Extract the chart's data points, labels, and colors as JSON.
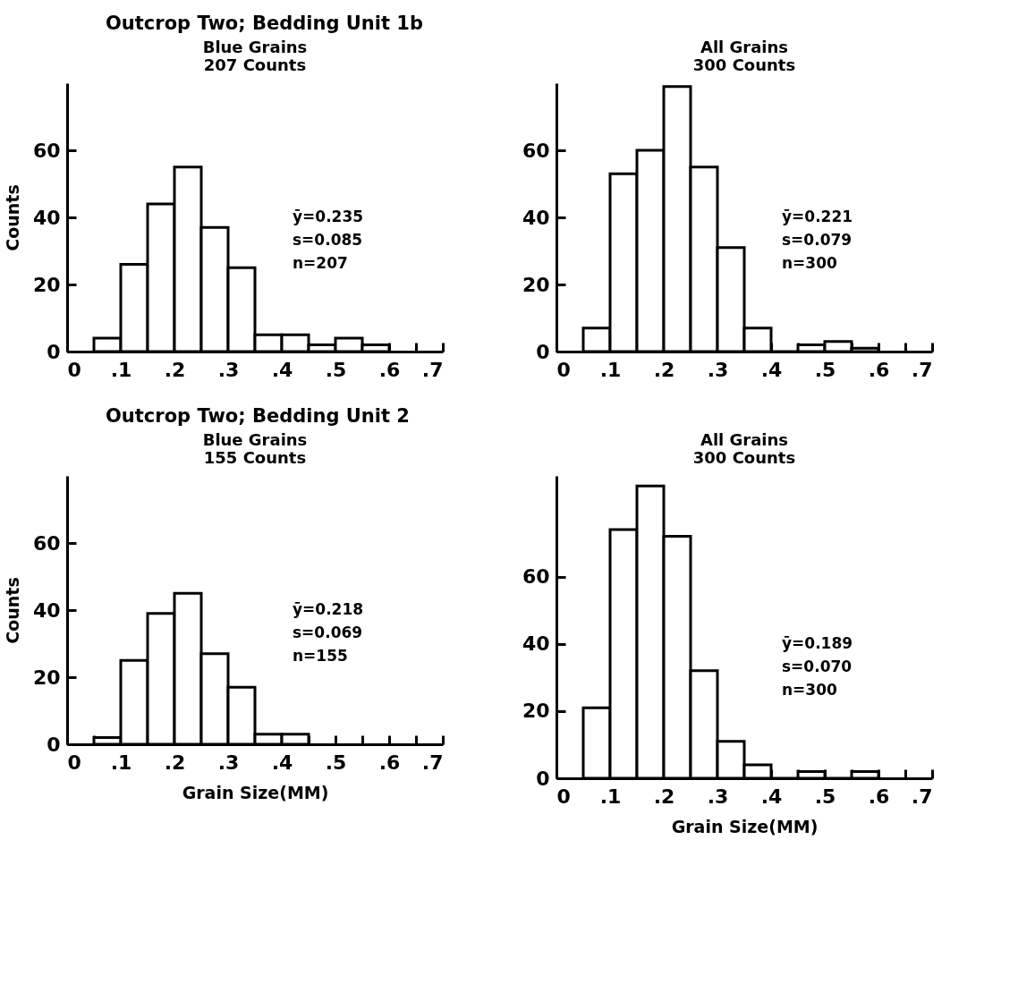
{
  "chart_data": [
    {
      "type": "histogram",
      "title": "Outcrop Two; Bedding Unit 1b",
      "subtitle": "Blue Grains\n207 Counts",
      "ylabel": "Counts",
      "bins": [
        0.05,
        0.1,
        0.15,
        0.2,
        0.25,
        0.3,
        0.35,
        0.4,
        0.45,
        0.5,
        0.55,
        0.6
      ],
      "values": [
        4,
        26,
        44,
        55,
        37,
        25,
        5,
        5,
        2,
        4,
        2
      ],
      "color": "#ffffff",
      "xlim": [
        0,
        0.7
      ],
      "xticks": [
        {
          "value": 0,
          "label": "0"
        },
        {
          "value": 0.05,
          "label": null
        },
        {
          "value": 0.1,
          "label": ".1"
        },
        {
          "value": 0.15,
          "label": null
        },
        {
          "value": 0.2,
          "label": ".2"
        },
        {
          "value": 0.25,
          "label": null
        },
        {
          "value": 0.3,
          "label": ".3"
        },
        {
          "value": 0.35,
          "label": null
        },
        {
          "value": 0.4,
          "label": ".4"
        },
        {
          "value": 0.45,
          "label": null
        },
        {
          "value": 0.5,
          "label": ".5"
        },
        {
          "value": 0.55,
          "label": null
        },
        {
          "value": 0.6,
          "label": ".6"
        },
        {
          "value": 0.65,
          "label": null
        },
        {
          "value": 0.7,
          "label": ".7"
        }
      ],
      "ylim": [
        0,
        80
      ],
      "yticks": [
        0,
        20,
        40,
        60
      ],
      "annotations": [
        "ȳ=0.235",
        "s=0.085",
        "n=207"
      ]
    },
    {
      "type": "histogram",
      "subtitle": "All Grains\n300 Counts",
      "bins": [
        0.05,
        0.1,
        0.15,
        0.2,
        0.25,
        0.3,
        0.35,
        0.4,
        0.45,
        0.5,
        0.55,
        0.6
      ],
      "values": [
        7,
        53,
        60,
        79,
        55,
        31,
        7,
        0,
        2,
        3,
        1
      ],
      "color": "#ffffff",
      "xlim": [
        0,
        0.7
      ],
      "xticks": [
        {
          "value": 0,
          "label": "0"
        },
        {
          "value": 0.05,
          "label": null
        },
        {
          "value": 0.1,
          "label": ".1"
        },
        {
          "value": 0.15,
          "label": null
        },
        {
          "value": 0.2,
          "label": ".2"
        },
        {
          "value": 0.25,
          "label": null
        },
        {
          "value": 0.3,
          "label": ".3"
        },
        {
          "value": 0.35,
          "label": null
        },
        {
          "value": 0.4,
          "label": ".4"
        },
        {
          "value": 0.45,
          "label": null
        },
        {
          "value": 0.5,
          "label": ".5"
        },
        {
          "value": 0.55,
          "label": null
        },
        {
          "value": 0.6,
          "label": ".6"
        },
        {
          "value": 0.65,
          "label": null
        },
        {
          "value": 0.7,
          "label": ".7"
        }
      ],
      "ylim": [
        0,
        80
      ],
      "yticks": [
        0,
        20,
        40,
        60
      ],
      "annotations": [
        "ȳ=0.221",
        "s=0.079",
        "n=300"
      ]
    },
    {
      "type": "histogram",
      "title": "Outcrop Two; Bedding Unit 2",
      "subtitle": "Blue Grains\n155 Counts",
      "xlabel": "Grain Size(MM)",
      "ylabel": "Counts",
      "bins": [
        0.05,
        0.1,
        0.15,
        0.2,
        0.25,
        0.3,
        0.35,
        0.4,
        0.45
      ],
      "values": [
        2,
        25,
        39,
        45,
        27,
        17,
        3,
        3
      ],
      "color": "#ffffff",
      "xlim": [
        0,
        0.7
      ],
      "xticks": [
        {
          "value": 0,
          "label": "0"
        },
        {
          "value": 0.05,
          "label": null
        },
        {
          "value": 0.1,
          "label": ".1"
        },
        {
          "value": 0.15,
          "label": null
        },
        {
          "value": 0.2,
          "label": ".2"
        },
        {
          "value": 0.25,
          "label": null
        },
        {
          "value": 0.3,
          "label": ".3"
        },
        {
          "value": 0.35,
          "label": null
        },
        {
          "value": 0.4,
          "label": ".4"
        },
        {
          "value": 0.45,
          "label": null
        },
        {
          "value": 0.5,
          "label": ".5"
        },
        {
          "value": 0.55,
          "label": null
        },
        {
          "value": 0.6,
          "label": ".6"
        },
        {
          "value": 0.65,
          "label": null
        },
        {
          "value": 0.7,
          "label": ".7"
        }
      ],
      "ylim": [
        0,
        80
      ],
      "yticks": [
        0,
        20,
        40,
        60
      ],
      "annotations": [
        "ȳ=0.218",
        "s=0.069",
        "n=155"
      ]
    },
    {
      "type": "histogram",
      "subtitle": "All Grains\n300 Counts",
      "xlabel": "Grain Size(MM)",
      "bins": [
        0.05,
        0.1,
        0.15,
        0.2,
        0.25,
        0.3,
        0.35,
        0.4,
        0.45,
        0.5,
        0.55,
        0.6
      ],
      "values": [
        21,
        74,
        87,
        72,
        32,
        11,
        4,
        0,
        2,
        0,
        2
      ],
      "color": "#ffffff",
      "xlim": [
        0,
        0.7
      ],
      "xticks": [
        {
          "value": 0,
          "label": "0"
        },
        {
          "value": 0.05,
          "label": null
        },
        {
          "value": 0.1,
          "label": ".1"
        },
        {
          "value": 0.15,
          "label": null
        },
        {
          "value": 0.2,
          "label": ".2"
        },
        {
          "value": 0.25,
          "label": null
        },
        {
          "value": 0.3,
          "label": ".3"
        },
        {
          "value": 0.35,
          "label": null
        },
        {
          "value": 0.4,
          "label": ".4"
        },
        {
          "value": 0.45,
          "label": null
        },
        {
          "value": 0.5,
          "label": ".5"
        },
        {
          "value": 0.55,
          "label": null
        },
        {
          "value": 0.6,
          "label": ".6"
        },
        {
          "value": 0.65,
          "label": null
        },
        {
          "value": 0.7,
          "label": ".7"
        }
      ],
      "ylim": [
        0,
        90
      ],
      "yticks": [
        0,
        20,
        40,
        60
      ],
      "annotations": [
        "ȳ=0.189",
        "s=0.070",
        "n=300"
      ]
    }
  ]
}
